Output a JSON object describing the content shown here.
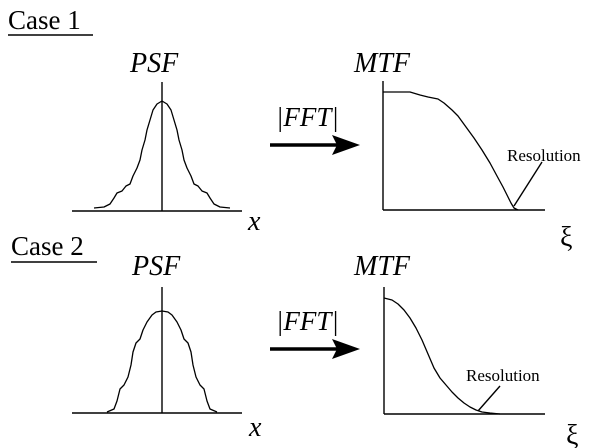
{
  "case1": {
    "title": "Case 1",
    "psf_label": "PSF",
    "mtf_label": "MTF",
    "operator_label": "|FFT|",
    "psf_axis": "x",
    "mtf_axis": "ξ",
    "resolution_label": "Resolution"
  },
  "case2": {
    "title": "Case 2",
    "psf_label": "PSF",
    "mtf_label": "MTF",
    "operator_label": "|FFT|",
    "psf_axis": "x",
    "mtf_axis": "ξ",
    "resolution_label": "Resolution"
  }
}
